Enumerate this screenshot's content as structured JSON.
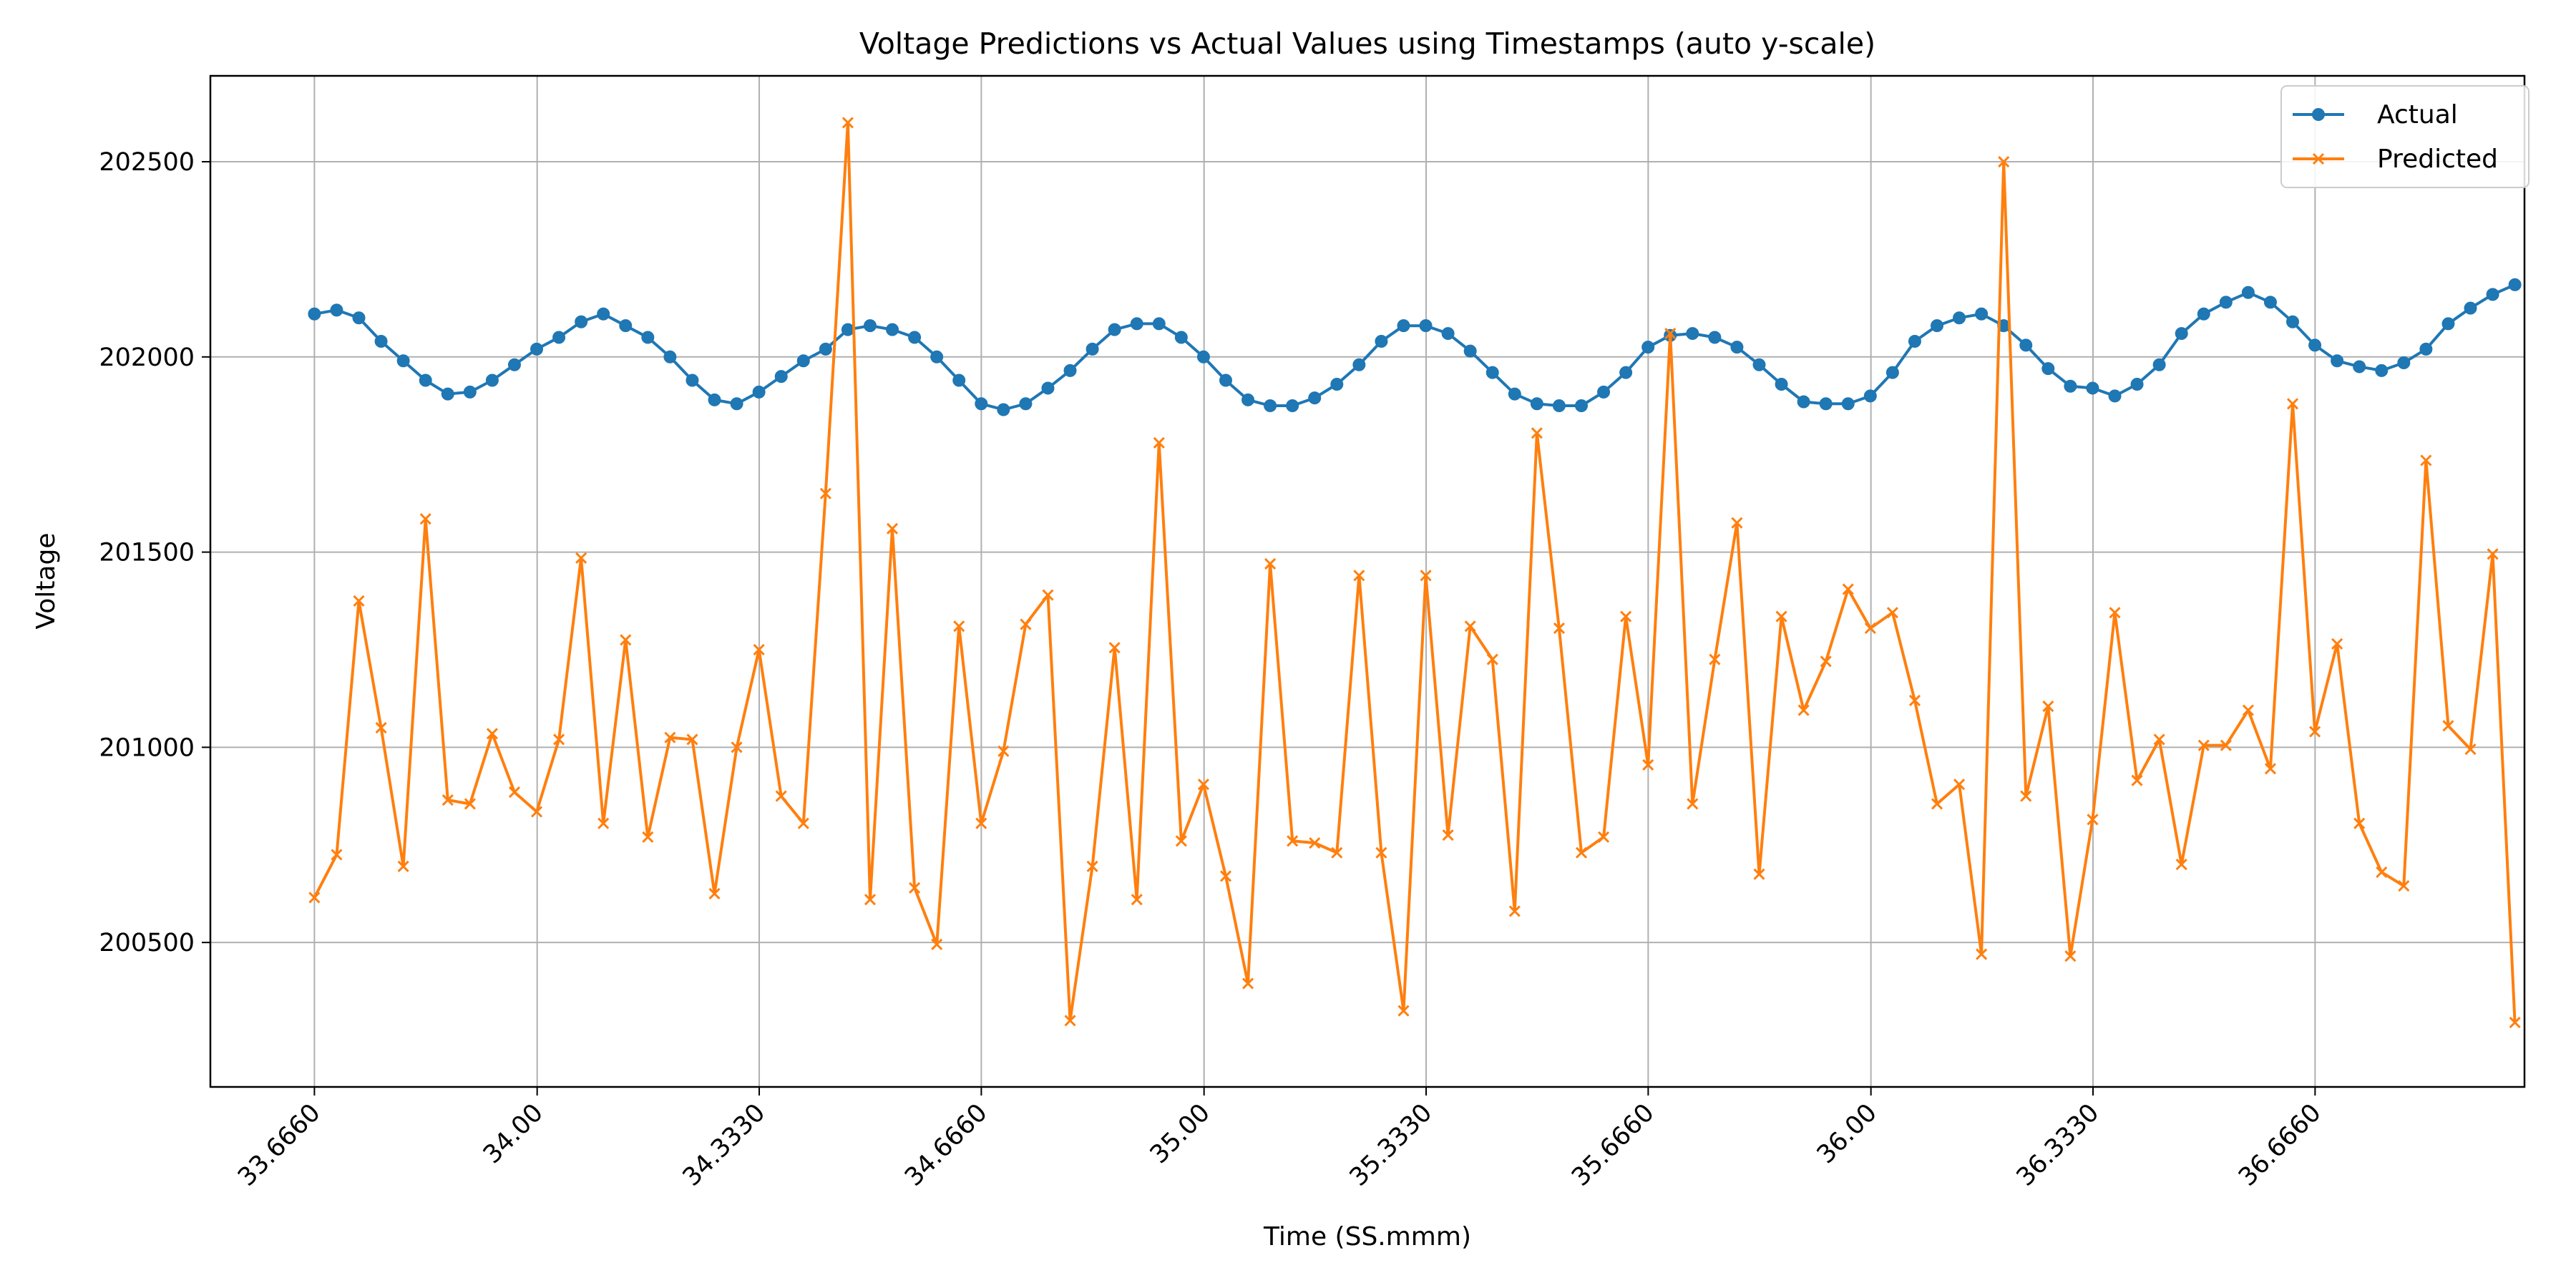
{
  "chart_data": {
    "type": "line",
    "title": "Voltage Predictions vs Actual Values using Timestamps (auto y-scale)",
    "xlabel": "Time (SS.mmm)",
    "ylabel": "Voltage",
    "xlim": [
      33.51,
      36.98
    ],
    "ylim": [
      200130,
      202720
    ],
    "x_ticks": [
      {
        "value": 33.666,
        "label": "33.6660"
      },
      {
        "value": 34.0,
        "label": "34.00"
      },
      {
        "value": 34.333,
        "label": "34.3330"
      },
      {
        "value": 34.666,
        "label": "34.6660"
      },
      {
        "value": 35.0,
        "label": "35.00"
      },
      {
        "value": 35.333,
        "label": "35.3330"
      },
      {
        "value": 35.666,
        "label": "35.6660"
      },
      {
        "value": 36.0,
        "label": "36.00"
      },
      {
        "value": 36.333,
        "label": "36.3330"
      },
      {
        "value": 36.666,
        "label": "36.6660"
      }
    ],
    "y_ticks": [
      {
        "value": 200500,
        "label": "200500"
      },
      {
        "value": 201000,
        "label": "201000"
      },
      {
        "value": 201500,
        "label": "201500"
      },
      {
        "value": 202000,
        "label": "202000"
      },
      {
        "value": 202500,
        "label": "202500"
      }
    ],
    "grid": true,
    "legend_position": "top-right",
    "x_start": 33.666,
    "x_step": 0.03333,
    "series": [
      {
        "name": "Actual",
        "color": "#1f77b4",
        "marker": "circle",
        "values": [
          202110,
          202120,
          202100,
          202040,
          201990,
          201940,
          201905,
          201910,
          201940,
          201980,
          202020,
          202050,
          202090,
          202110,
          202080,
          202050,
          202000,
          201940,
          201890,
          201880,
          201910,
          201950,
          201990,
          202020,
          202070,
          202080,
          202070,
          202050,
          202000,
          201940,
          201880,
          201865,
          201880,
          201920,
          201965,
          202020,
          202070,
          202085,
          202085,
          202050,
          202000,
          201940,
          201890,
          201875,
          201875,
          201895,
          201930,
          201980,
          202040,
          202080,
          202080,
          202060,
          202015,
          201960,
          201905,
          201880,
          201875,
          201875,
          201910,
          201960,
          202025,
          202055,
          202060,
          202050,
          202025,
          201980,
          201930,
          201885,
          201880,
          201880,
          201900,
          201960,
          202040,
          202080,
          202100,
          202110,
          202080,
          202030,
          201970,
          201925,
          201920,
          201900,
          201930,
          201980,
          202060,
          202110,
          202140,
          202165,
          202140,
          202090,
          202030,
          201990,
          201975,
          201965,
          201985,
          202020,
          202085,
          202125,
          202160,
          202185
        ]
      },
      {
        "name": "Predicted",
        "color": "#ff7f0e",
        "marker": "x",
        "values": [
          200615,
          200725,
          201375,
          201050,
          200695,
          201585,
          200865,
          200855,
          201035,
          200885,
          200835,
          201020,
          201485,
          200805,
          201275,
          200770,
          201025,
          201020,
          200625,
          201000,
          201250,
          200875,
          200805,
          201650,
          202600,
          200610,
          201560,
          200640,
          200495,
          201310,
          200805,
          200990,
          201315,
          201390,
          200300,
          200695,
          201255,
          200610,
          201780,
          200760,
          200905,
          200670,
          200395,
          201470,
          200760,
          200755,
          200730,
          201440,
          200730,
          200325,
          201440,
          200775,
          201310,
          201225,
          200580,
          201805,
          201305,
          200730,
          200770,
          201335,
          200955,
          202060,
          200855,
          201225,
          201575,
          200675,
          201335,
          201095,
          201220,
          201405,
          201305,
          201345,
          201120,
          200855,
          200905,
          200470,
          202500,
          200875,
          201105,
          200465,
          200815,
          201345,
          200915,
          201020,
          200700,
          201005,
          201005,
          201095,
          200945,
          201880,
          201040,
          201265,
          200805,
          200680,
          200645,
          201735,
          201055,
          200995,
          201495,
          200295
        ]
      }
    ]
  }
}
